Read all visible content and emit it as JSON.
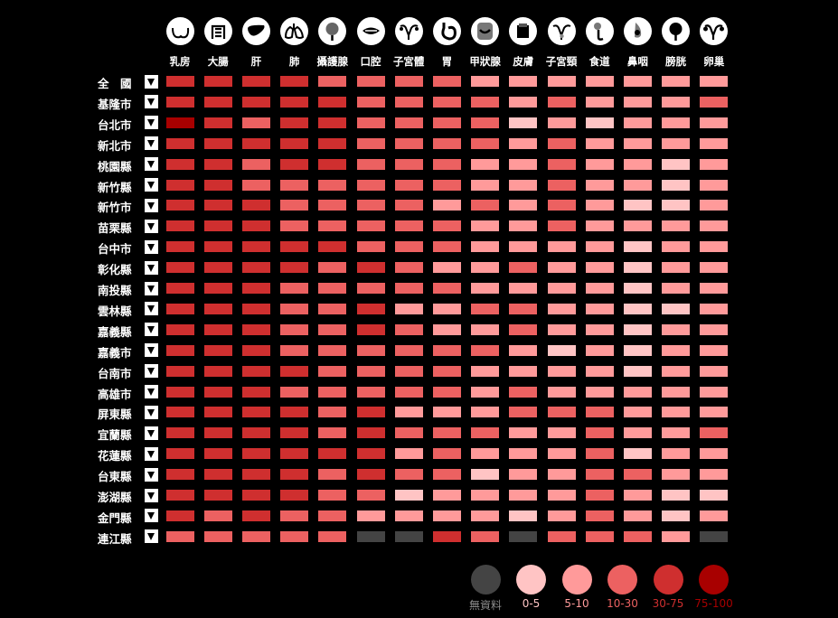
{
  "categories": [
    {
      "label": "乳房",
      "icon": "breast-icon"
    },
    {
      "label": "大腸",
      "icon": "colon-icon"
    },
    {
      "label": "肝",
      "icon": "liver-icon"
    },
    {
      "label": "肺",
      "icon": "lung-icon"
    },
    {
      "label": "攝護腺",
      "icon": "prostate-icon"
    },
    {
      "label": "口腔",
      "icon": "mouth-icon"
    },
    {
      "label": "子宮體",
      "icon": "uterus-icon"
    },
    {
      "label": "胃",
      "icon": "stomach-icon"
    },
    {
      "label": "甲狀腺",
      "icon": "thyroid-icon"
    },
    {
      "label": "皮膚",
      "icon": "skin-icon"
    },
    {
      "label": "子宮頸",
      "icon": "cervix-icon"
    },
    {
      "label": "食道",
      "icon": "esophagus-icon"
    },
    {
      "label": "鼻咽",
      "icon": "nasopharynx-icon"
    },
    {
      "label": "膀胱",
      "icon": "bladder-icon"
    },
    {
      "label": "卵巢",
      "icon": "ovary-icon"
    }
  ],
  "rows": [
    "全　國",
    "基隆市",
    "台北市",
    "新北市",
    "桃園縣",
    "新竹縣",
    "新竹市",
    "苗栗縣",
    "台中市",
    "彰化縣",
    "南投縣",
    "雲林縣",
    "嘉義縣",
    "嘉義市",
    "台南市",
    "高雄市",
    "屏東縣",
    "宜蘭縣",
    "花蓮縣",
    "台東縣",
    "澎湖縣",
    "金門縣",
    "連江縣"
  ],
  "legend": [
    {
      "label": "無資料",
      "color": "#444444",
      "text_color": "#8a8a8a"
    },
    {
      "label": "0-5",
      "color": "#ffc4c4",
      "text_color": "#ffc4c4"
    },
    {
      "label": "5-10",
      "color": "#ff9a9a",
      "text_color": "#ff9a9a"
    },
    {
      "label": "10-30",
      "color": "#ec6161",
      "text_color": "#ec6161"
    },
    {
      "label": "30-75",
      "color": "#cf2f2f",
      "text_color": "#cf2f2f"
    },
    {
      "label": "75-100",
      "color": "#a80000",
      "text_color": "#a80000"
    }
  ],
  "chart_data": {
    "type": "heatmap",
    "legend_placement": "bottom-right",
    "note": "values are legend class indices: 0=無資料, 1=0-5, 2=5-10, 3=10-30, 4=30-75, 5=75-100",
    "matrix": [
      [
        4,
        4,
        4,
        4,
        3,
        3,
        3,
        3,
        2,
        2,
        2,
        2,
        2,
        2,
        2
      ],
      [
        4,
        4,
        4,
        4,
        4,
        3,
        3,
        3,
        3,
        2,
        3,
        2,
        2,
        2,
        3
      ],
      [
        5,
        4,
        3,
        4,
        4,
        3,
        3,
        3,
        3,
        1,
        2,
        1,
        2,
        2,
        2
      ],
      [
        4,
        4,
        4,
        4,
        4,
        3,
        3,
        3,
        3,
        2,
        3,
        2,
        2,
        2,
        2
      ],
      [
        4,
        4,
        3,
        4,
        4,
        3,
        3,
        3,
        2,
        2,
        3,
        2,
        2,
        1,
        2
      ],
      [
        4,
        4,
        3,
        3,
        3,
        3,
        3,
        3,
        2,
        2,
        3,
        2,
        2,
        1,
        2
      ],
      [
        4,
        4,
        4,
        3,
        3,
        3,
        3,
        2,
        3,
        2,
        3,
        2,
        1,
        1,
        2
      ],
      [
        4,
        4,
        4,
        3,
        3,
        3,
        3,
        3,
        2,
        2,
        3,
        2,
        2,
        2,
        2
      ],
      [
        4,
        4,
        4,
        4,
        4,
        3,
        3,
        3,
        2,
        2,
        2,
        2,
        1,
        2,
        2
      ],
      [
        4,
        4,
        4,
        4,
        3,
        4,
        3,
        2,
        2,
        3,
        2,
        2,
        1,
        2,
        2
      ],
      [
        4,
        4,
        4,
        3,
        3,
        3,
        3,
        3,
        2,
        2,
        2,
        2,
        1,
        2,
        2
      ],
      [
        4,
        4,
        4,
        3,
        3,
        4,
        2,
        2,
        3,
        3,
        2,
        2,
        1,
        1,
        2
      ],
      [
        4,
        4,
        4,
        3,
        3,
        4,
        3,
        2,
        2,
        3,
        2,
        2,
        1,
        2,
        2
      ],
      [
        4,
        4,
        4,
        3,
        3,
        3,
        3,
        3,
        3,
        2,
        1,
        2,
        1,
        2,
        2
      ],
      [
        4,
        4,
        4,
        4,
        3,
        3,
        3,
        3,
        2,
        2,
        2,
        2,
        1,
        2,
        2
      ],
      [
        4,
        4,
        4,
        3,
        3,
        3,
        3,
        3,
        2,
        3,
        2,
        2,
        2,
        2,
        2
      ],
      [
        4,
        4,
        4,
        4,
        3,
        4,
        2,
        2,
        2,
        3,
        3,
        3,
        2,
        2,
        2
      ],
      [
        4,
        4,
        4,
        4,
        3,
        4,
        3,
        3,
        3,
        2,
        2,
        3,
        2,
        2,
        3
      ],
      [
        4,
        4,
        4,
        4,
        4,
        4,
        2,
        3,
        2,
        2,
        2,
        3,
        1,
        2,
        2
      ],
      [
        4,
        4,
        4,
        4,
        3,
        4,
        3,
        3,
        1,
        2,
        2,
        3,
        3,
        2,
        2
      ],
      [
        4,
        4,
        4,
        4,
        3,
        3,
        1,
        2,
        2,
        2,
        2,
        3,
        2,
        1,
        1
      ],
      [
        4,
        3,
        4,
        3,
        3,
        2,
        2,
        2,
        2,
        1,
        2,
        3,
        2,
        1,
        2
      ],
      [
        3,
        3,
        3,
        3,
        3,
        0,
        0,
        4,
        3,
        0,
        3,
        3,
        3,
        2,
        0
      ]
    ]
  }
}
